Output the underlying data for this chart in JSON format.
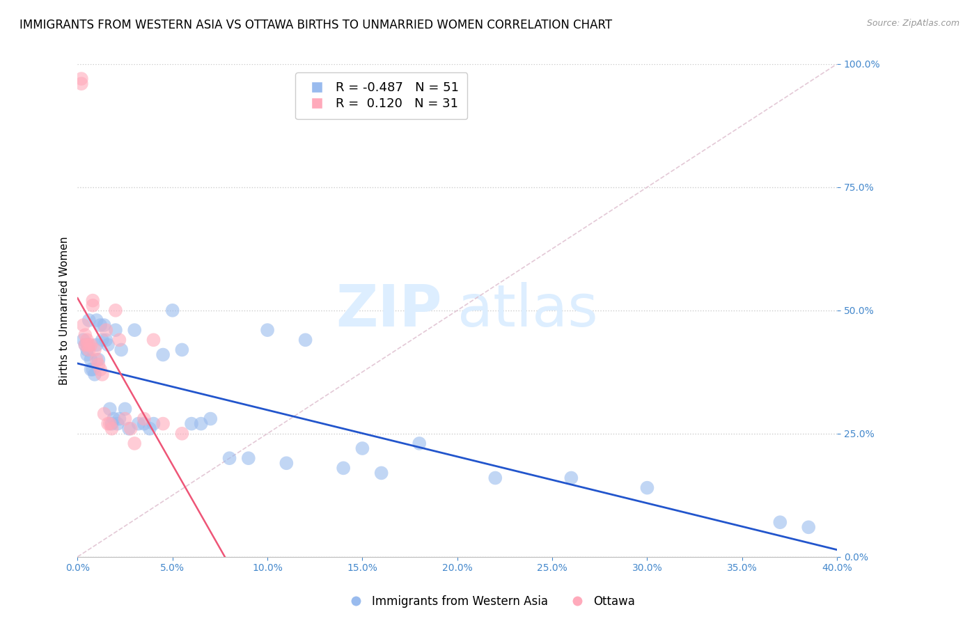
{
  "title": "IMMIGRANTS FROM WESTERN ASIA VS OTTAWA BIRTHS TO UNMARRIED WOMEN CORRELATION CHART",
  "source": "Source: ZipAtlas.com",
  "ylabel": "Births to Unmarried Women",
  "legend_label1": "Immigrants from Western Asia",
  "legend_label2": "Ottawa",
  "r1": -0.487,
  "n1": 51,
  "r2": 0.12,
  "n2": 31,
  "color_blue": "#99BBEE",
  "color_pink": "#FFAABB",
  "color_blue_line": "#2255CC",
  "color_pink_line": "#EE5577",
  "xmin": 0.0,
  "xmax": 0.4,
  "ymin": 0.0,
  "ymax": 1.0,
  "blue_scatter_x": [
    0.003,
    0.004,
    0.005,
    0.005,
    0.006,
    0.007,
    0.007,
    0.008,
    0.009,
    0.01,
    0.01,
    0.011,
    0.012,
    0.013,
    0.014,
    0.015,
    0.016,
    0.017,
    0.018,
    0.019,
    0.02,
    0.021,
    0.022,
    0.023,
    0.025,
    0.027,
    0.03,
    0.032,
    0.035,
    0.038,
    0.04,
    0.045,
    0.05,
    0.055,
    0.06,
    0.065,
    0.07,
    0.08,
    0.09,
    0.1,
    0.11,
    0.12,
    0.14,
    0.15,
    0.16,
    0.18,
    0.22,
    0.26,
    0.3,
    0.37,
    0.385
  ],
  "blue_scatter_y": [
    0.44,
    0.43,
    0.42,
    0.41,
    0.48,
    0.4,
    0.38,
    0.38,
    0.37,
    0.48,
    0.43,
    0.4,
    0.47,
    0.44,
    0.47,
    0.44,
    0.43,
    0.3,
    0.27,
    0.28,
    0.46,
    0.27,
    0.28,
    0.42,
    0.3,
    0.26,
    0.46,
    0.27,
    0.27,
    0.26,
    0.27,
    0.41,
    0.5,
    0.42,
    0.27,
    0.27,
    0.28,
    0.2,
    0.2,
    0.46,
    0.19,
    0.44,
    0.18,
    0.22,
    0.17,
    0.23,
    0.16,
    0.16,
    0.14,
    0.07,
    0.06
  ],
  "pink_scatter_x": [
    0.002,
    0.002,
    0.003,
    0.004,
    0.004,
    0.005,
    0.005,
    0.006,
    0.006,
    0.007,
    0.008,
    0.008,
    0.009,
    0.01,
    0.011,
    0.012,
    0.013,
    0.014,
    0.015,
    0.016,
    0.017,
    0.018,
    0.02,
    0.022,
    0.025,
    0.028,
    0.03,
    0.035,
    0.04,
    0.045,
    0.055
  ],
  "pink_scatter_y": [
    0.97,
    0.96,
    0.47,
    0.45,
    0.43,
    0.44,
    0.43,
    0.43,
    0.42,
    0.43,
    0.52,
    0.51,
    0.42,
    0.4,
    0.39,
    0.38,
    0.37,
    0.29,
    0.46,
    0.27,
    0.27,
    0.26,
    0.5,
    0.44,
    0.28,
    0.26,
    0.23,
    0.28,
    0.44,
    0.27,
    0.25
  ],
  "grid_color": "#CCCCCC",
  "grid_linestyle": "dotted",
  "background_color": "#FFFFFF",
  "title_fontsize": 12,
  "axis_label_fontsize": 11,
  "tick_color": "#4488CC",
  "watermark_zip": "ZIP",
  "watermark_atlas": "atlas",
  "watermark_color": "#DDEEFF",
  "watermark_fontsize": 60,
  "ref_line_color": "#DDBBCC",
  "ref_line_style": "--"
}
